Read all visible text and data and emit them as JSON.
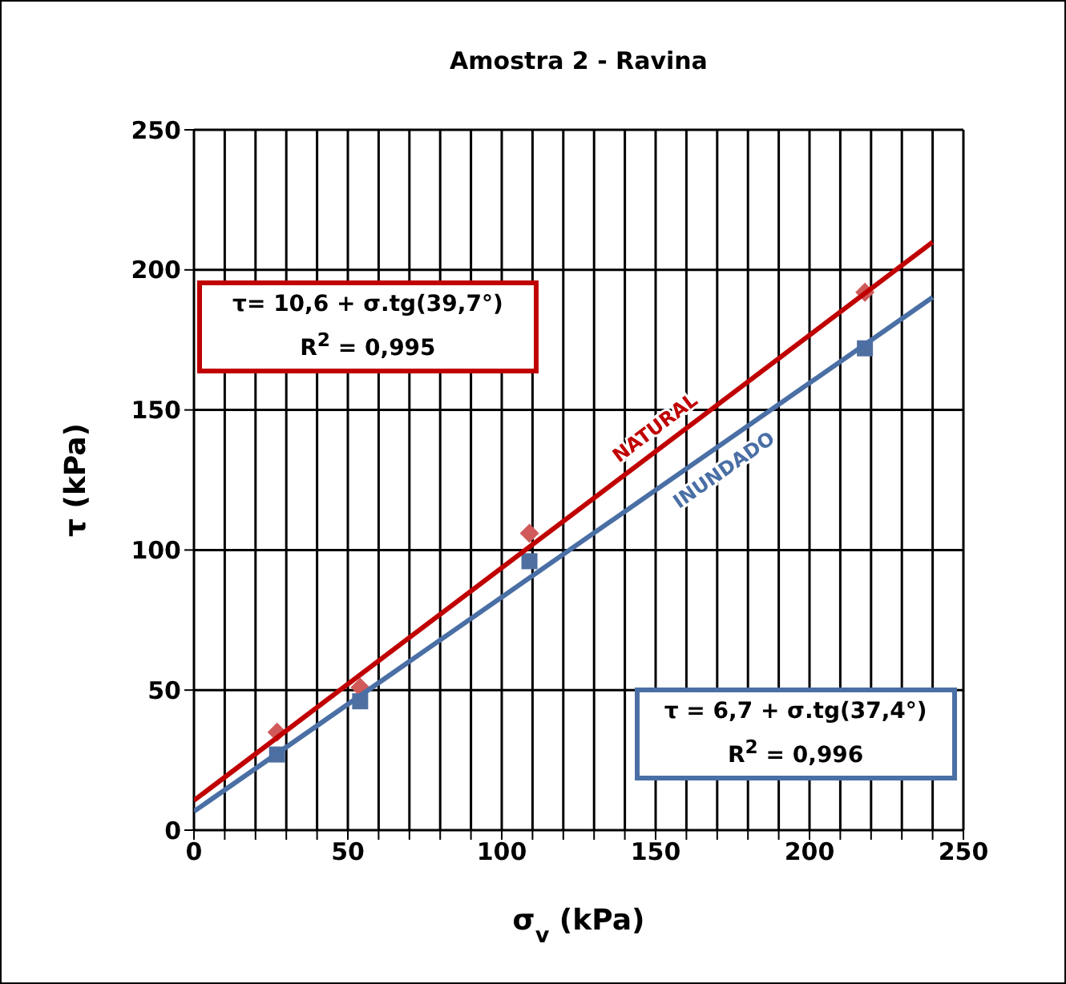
{
  "chart_data": {
    "type": "scatter",
    "title": "Amostra 2 - Ravina",
    "xlabel": "σ$_{v}$ (kPa)",
    "ylabel": "τ (kPa)",
    "xlim": [
      0,
      250
    ],
    "ylim": [
      0,
      250
    ],
    "xticks": [
      0,
      {
        "value": 10,
        "label": null
      },
      {
        "value": 20,
        "label": null
      },
      {
        "value": 30,
        "label": null
      },
      {
        "value": 40,
        "label": null
      },
      50,
      {
        "value": 60,
        "label": null
      },
      {
        "value": 70,
        "label": null
      },
      {
        "value": 80,
        "label": null
      },
      {
        "value": 90,
        "label": null
      },
      100,
      {
        "value": 110,
        "label": null
      },
      {
        "value": 120,
        "label": null
      },
      {
        "value": 130,
        "label": null
      },
      {
        "value": 140,
        "label": null
      },
      150,
      {
        "value": 160,
        "label": null
      },
      {
        "value": 170,
        "label": null
      },
      {
        "value": 180,
        "label": null
      },
      {
        "value": 190,
        "label": null
      },
      200,
      {
        "value": 210,
        "label": null
      },
      {
        "value": 220,
        "label": null
      },
      {
        "value": 230,
        "label": null
      },
      {
        "value": 240,
        "label": null
      },
      250
    ],
    "yticks": [
      0,
      50,
      100,
      150,
      200,
      250
    ],
    "grid": true,
    "legend": false,
    "series": [
      {
        "type": "scatter",
        "color": "#d05a5a",
        "marker": "diamond",
        "x": [
          27,
          54,
          109,
          218
        ],
        "values": [
          35,
          51,
          106,
          192
        ]
      },
      {
        "type": "scatter",
        "color": "#4f6fa0",
        "marker": "square",
        "x": [
          27,
          54,
          109,
          218
        ],
        "values": [
          27,
          46,
          96,
          172
        ]
      },
      {
        "type": "line",
        "name": "NATURAL",
        "color": "#c00000",
        "marker": "none",
        "x": [
          0,
          240
        ],
        "values": [
          10.6,
          209.9
        ]
      },
      {
        "type": "line",
        "name": "INUNDADO",
        "color": "#4a6fa5",
        "marker": "none",
        "x": [
          0,
          240
        ],
        "values": [
          6.7,
          190.2
        ]
      }
    ],
    "annotations": [
      "τ= 10,6 + σ.tg(39,7°)",
      "R$^{2}$ = 0,995",
      "τ = 6,7 + σ.tg(37,4°)",
      "R$^{2}$ = 0,996"
    ]
  }
}
